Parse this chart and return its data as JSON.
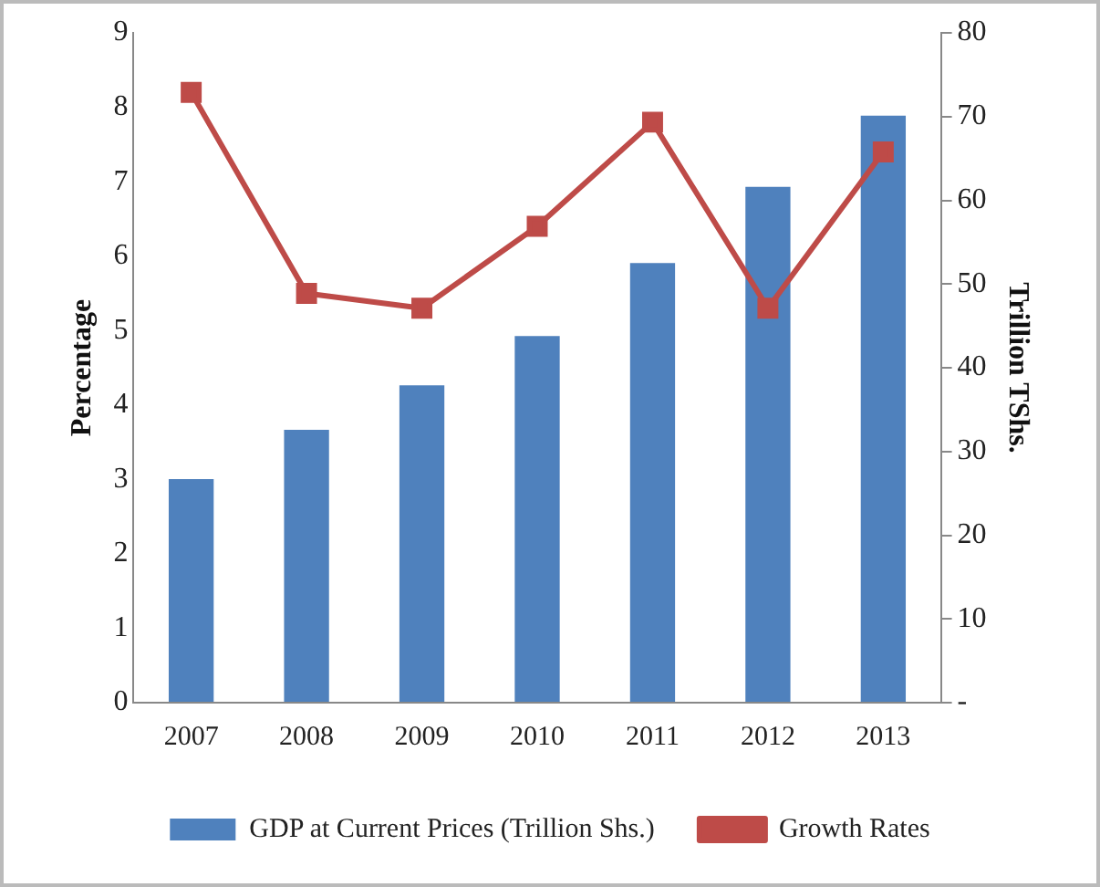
{
  "chart_data": {
    "type": "bar",
    "ylabel": "Percentage",
    "y2label": "Trillion TShs.",
    "categories": [
      "2007",
      "2008",
      "2009",
      "2010",
      "2011",
      "2012",
      "2013"
    ],
    "series": [
      {
        "name": "GDP at Current Prices (Trillion Shs.)",
        "axis": "y2",
        "color": "#4f81bd",
        "values": [
          26.7,
          32.6,
          37.9,
          43.8,
          52.5,
          61.6,
          70.1
        ]
      },
      {
        "name": "Growth Rates",
        "type": "line",
        "axis": "y",
        "color": "#be4b48",
        "values": [
          8.2,
          5.5,
          5.3,
          6.4,
          7.8,
          5.3,
          7.4
        ],
        "marker": "square"
      }
    ],
    "ylim": [
      0,
      9
    ],
    "yticks": [
      0,
      1,
      2,
      3,
      4,
      5,
      6,
      7,
      8,
      9
    ],
    "y2lim": [
      0,
      80
    ],
    "y2ticks": [
      {
        "value": 0,
        "label": "-"
      },
      10,
      20,
      30,
      40,
      50,
      60,
      70,
      80
    ],
    "grid": false,
    "legend": "bottom"
  }
}
